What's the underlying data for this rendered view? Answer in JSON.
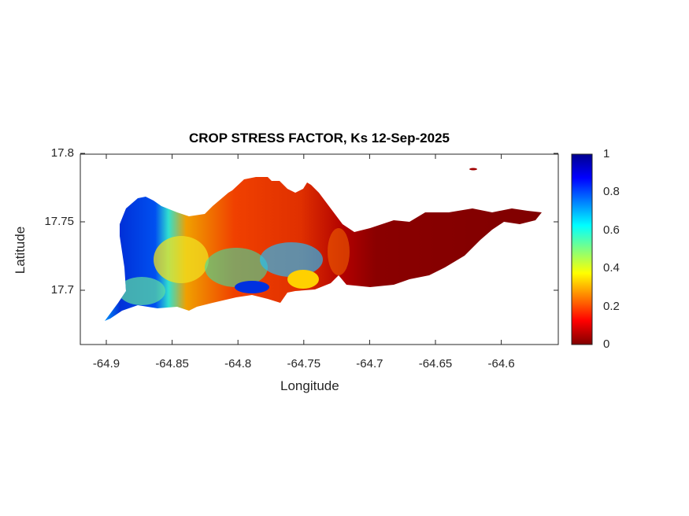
{
  "chart_data": {
    "type": "heatmap",
    "title": "CROP STRESS FACTOR, Ks  12-Sep-2025",
    "xlabel": "Longitude",
    "ylabel": "Latitude",
    "xticks": [
      "-64.9",
      "-64.85",
      "-64.8",
      "-64.75",
      "-64.7",
      "-64.65",
      "-64.6"
    ],
    "yticks": [
      "17.8",
      "17.75",
      "17.7"
    ],
    "xlim": [
      -64.92,
      -64.555
    ],
    "ylim": [
      17.66,
      17.8
    ],
    "colorbar": {
      "colormap": "jet",
      "ticks": [
        "0",
        "0.2",
        "0.4",
        "0.6",
        "0.8",
        "1"
      ],
      "clim": [
        0,
        1
      ]
    },
    "description_colors": {
      "low": "#800000",
      "high": "#00008f"
    },
    "grid": false
  }
}
